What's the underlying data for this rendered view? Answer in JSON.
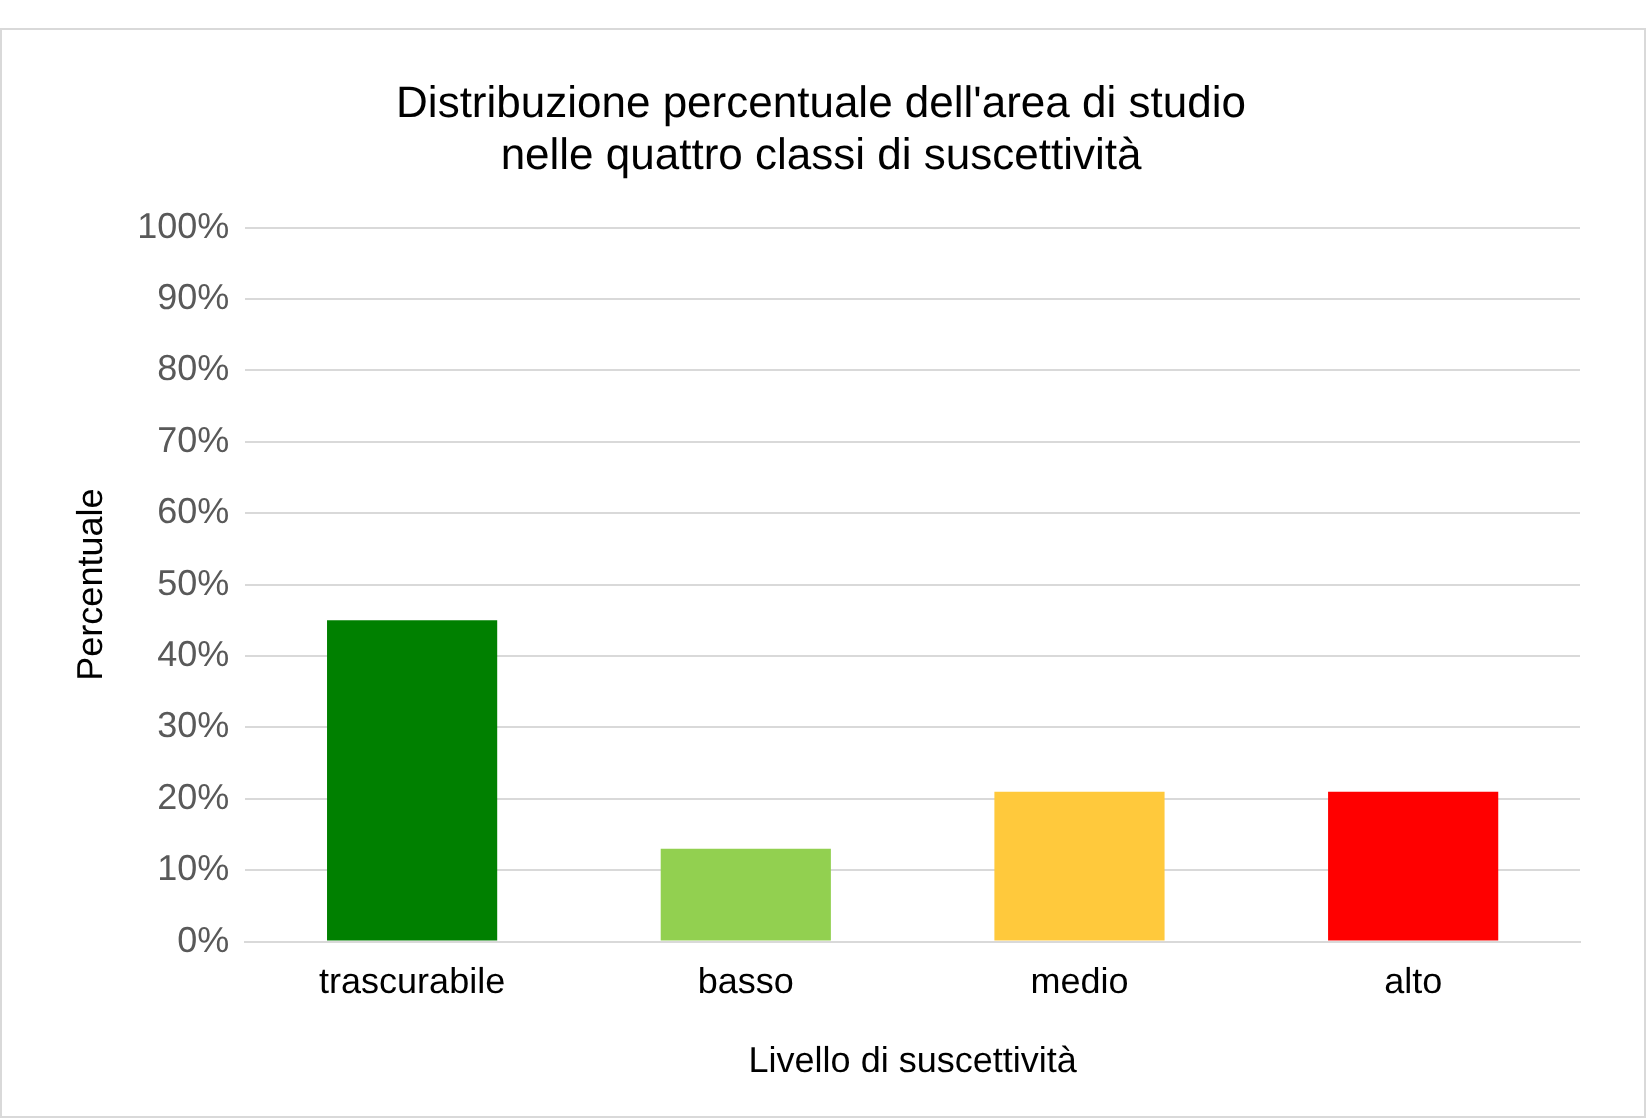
{
  "chart_data": {
    "type": "bar",
    "title": "Distribuzione percentuale dell'area di studio\nnelle quattro classi di suscettività",
    "xlabel": "Livello di suscettività",
    "ylabel": "Percentuale",
    "categories": [
      "trascurabile",
      "basso",
      "medio",
      "alto"
    ],
    "values": [
      45,
      13,
      21,
      21
    ],
    "colors": [
      "#008000",
      "#92d050",
      "#ffc93c",
      "#ff0000"
    ],
    "ylim": [
      0,
      100
    ],
    "yticks": [
      {
        "value": 0,
        "label": "0%"
      },
      {
        "value": 10,
        "label": "10%"
      },
      {
        "value": 20,
        "label": "20%"
      },
      {
        "value": 30,
        "label": "30%"
      },
      {
        "value": 40,
        "label": "40%"
      },
      {
        "value": 50,
        "label": "50%"
      },
      {
        "value": 60,
        "label": "60%"
      },
      {
        "value": 70,
        "label": "70%"
      },
      {
        "value": 80,
        "label": "80%"
      },
      {
        "value": 90,
        "label": "90%"
      },
      {
        "value": 100,
        "label": "100%"
      }
    ],
    "grid": "y",
    "legend": false
  }
}
